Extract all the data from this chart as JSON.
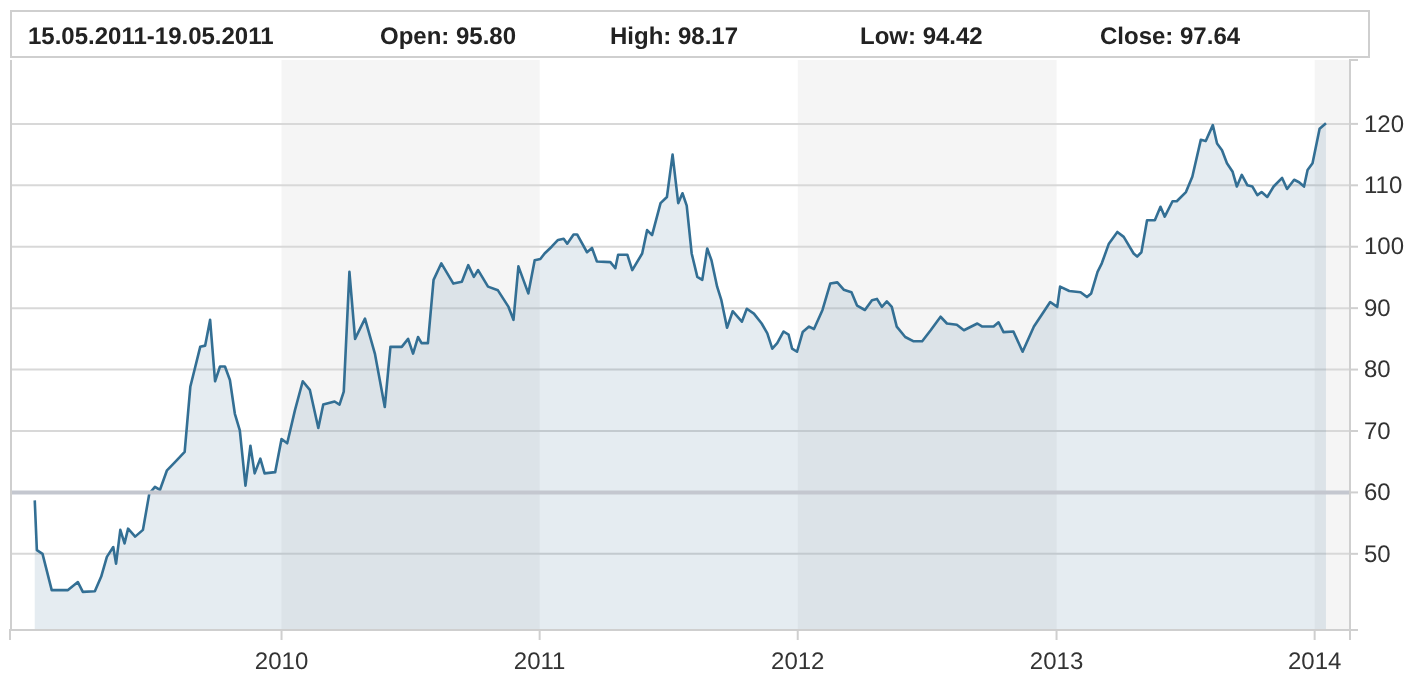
{
  "chart_data": {
    "type": "area",
    "title": "15.05.2011-19.05.2011",
    "annotations": [
      "Open: 95.80",
      "High: 98.17",
      "Low: 94.42",
      "Close: 97.64"
    ],
    "x": [
      "2009-01-17",
      "2009-01-20",
      "2009-01-28",
      "2009-02-10",
      "2009-03-05",
      "2009-03-19",
      "2009-03-26",
      "2009-04-12",
      "2009-04-21",
      "2009-04-29",
      "2009-05-08",
      "2009-05-12",
      "2009-05-18",
      "2009-05-24",
      "2009-05-29",
      "2009-06-08",
      "2009-06-19",
      "2009-06-28",
      "2009-07-06",
      "2009-07-13",
      "2009-07-23",
      "2009-08-03",
      "2009-08-17",
      "2009-08-25",
      "2009-09-08",
      "2009-09-15",
      "2009-09-22",
      "2009-09-29",
      "2009-10-06",
      "2009-10-13",
      "2009-10-20",
      "2009-10-27",
      "2009-11-03",
      "2009-11-11",
      "2009-11-18",
      "2009-11-24",
      "2009-12-02",
      "2009-12-08",
      "2009-12-23",
      "2010-01-01",
      "2010-01-09",
      "2010-01-20",
      "2010-01-31",
      "2010-02-10",
      "2010-02-22",
      "2010-03-01",
      "2010-03-17",
      "2010-03-24",
      "2010-03-30",
      "2010-04-07",
      "2010-04-15",
      "2010-04-29",
      "2010-05-13",
      "2010-05-27",
      "2010-06-04",
      "2010-06-20",
      "2010-06-29",
      "2010-07-06",
      "2010-07-13",
      "2010-07-18",
      "2010-07-27",
      "2010-08-04",
      "2010-08-15",
      "2010-09-01",
      "2010-09-13",
      "2010-09-22",
      "2010-09-30",
      "2010-10-06",
      "2010-10-20",
      "2010-11-03",
      "2010-11-18",
      "2010-11-25",
      "2010-12-02",
      "2010-12-16",
      "2010-12-25",
      "2011-01-02",
      "2011-01-08",
      "2011-01-18",
      "2011-01-27",
      "2011-02-04",
      "2011-02-09",
      "2011-02-18",
      "2011-02-23",
      "2011-03-09",
      "2011-03-16",
      "2011-03-23",
      "2011-04-11",
      "2011-04-18",
      "2011-04-22",
      "2011-05-05",
      "2011-05-12",
      "2011-05-26",
      "2011-06-02",
      "2011-06-09",
      "2011-06-21",
      "2011-06-30",
      "2011-07-08",
      "2011-07-16",
      "2011-07-22",
      "2011-07-28",
      "2011-08-04",
      "2011-08-12",
      "2011-08-19",
      "2011-08-26",
      "2011-09-01",
      "2011-09-09",
      "2011-09-15",
      "2011-09-23",
      "2011-10-01",
      "2011-10-14",
      "2011-10-21",
      "2011-10-31",
      "2011-11-11",
      "2011-11-19",
      "2011-11-26",
      "2011-12-03",
      "2011-12-12",
      "2011-12-19",
      "2011-12-24",
      "2011-12-31",
      "2012-01-08",
      "2012-01-17",
      "2012-01-24",
      "2012-02-05",
      "2012-02-16",
      "2012-02-26",
      "2012-03-06",
      "2012-03-17",
      "2012-03-25",
      "2012-04-05",
      "2012-04-15",
      "2012-04-22",
      "2012-04-29",
      "2012-05-06",
      "2012-05-13",
      "2012-05-20",
      "2012-06-01",
      "2012-06-13",
      "2012-06-25",
      "2012-07-07",
      "2012-07-21",
      "2012-07-30",
      "2012-08-13",
      "2012-08-23",
      "2012-09-11",
      "2012-09-18",
      "2012-10-04",
      "2012-10-11",
      "2012-10-18",
      "2012-11-01",
      "2012-11-14",
      "2012-11-30",
      "2012-12-12",
      "2012-12-23",
      "2013-01-02",
      "2013-01-06",
      "2013-01-19",
      "2013-02-04",
      "2013-02-13",
      "2013-02-19",
      "2013-02-28",
      "2013-03-06",
      "2013-03-16",
      "2013-03-28",
      "2013-04-06",
      "2013-04-20",
      "2013-04-25",
      "2013-05-01",
      "2013-05-09",
      "2013-05-20",
      "2013-05-28",
      "2013-06-03",
      "2013-06-14",
      "2013-06-20",
      "2013-07-03",
      "2013-07-12",
      "2013-07-24",
      "2013-07-31",
      "2013-08-10",
      "2013-08-16",
      "2013-08-23",
      "2013-08-30",
      "2013-09-07",
      "2013-09-13",
      "2013-09-20",
      "2013-09-28",
      "2013-10-05",
      "2013-10-12",
      "2013-10-18",
      "2013-10-26",
      "2013-11-04",
      "2013-11-16",
      "2013-11-23",
      "2013-12-03",
      "2013-12-10",
      "2013-12-17",
      "2013-12-22",
      "2013-12-29",
      "2014-01-08",
      "2014-01-17"
    ],
    "series": [
      {
        "color": "#336f94",
        "values": [
          58.7,
          50.6,
          50.0,
          44.1,
          44.1,
          45.4,
          43.8,
          43.9,
          46.3,
          49.5,
          51.1,
          48.4,
          53.9,
          51.7,
          54.1,
          52.8,
          53.9,
          59.8,
          60.9,
          60.4,
          63.6,
          64.9,
          66.6,
          77.2,
          83.7,
          83.9,
          88.1,
          78.1,
          80.5,
          80.5,
          78.3,
          72.8,
          70.1,
          61.1,
          67.6,
          63.1,
          65.5,
          63.1,
          63.3,
          68.7,
          68.0,
          73.4,
          78.1,
          76.7,
          70.5,
          74.3,
          74.8,
          74.3,
          76.4,
          95.9,
          85.0,
          88.3,
          82.6,
          73.9,
          83.7,
          83.7,
          85.0,
          82.6,
          85.3,
          84.3,
          84.3,
          94.6,
          97.3,
          94.0,
          94.3,
          97.0,
          95.1,
          96.2,
          93.5,
          92.9,
          90.2,
          88.1,
          96.8,
          92.4,
          97.8,
          98.0,
          98.9,
          100.0,
          101.1,
          101.3,
          100.5,
          102.0,
          102.0,
          99.1,
          99.8,
          97.6,
          97.5,
          96.5,
          98.7,
          98.7,
          96.2,
          98.9,
          102.7,
          101.9,
          107.1,
          108.1,
          115.0,
          107.1,
          108.7,
          106.7,
          98.9,
          95.1,
          94.6,
          99.7,
          97.8,
          93.5,
          91.3,
          86.8,
          89.5,
          87.8,
          89.9,
          89.1,
          87.5,
          85.9,
          83.4,
          84.3,
          86.2,
          85.7,
          83.4,
          82.9,
          86.1,
          87.0,
          86.6,
          89.7,
          94.0,
          94.2,
          93.0,
          92.6,
          90.4,
          89.7,
          91.3,
          91.5,
          90.2,
          91.1,
          90.2,
          87.0,
          85.3,
          84.6,
          84.6,
          86.4,
          88.6,
          87.5,
          87.3,
          86.4,
          87.5,
          87.0,
          87.0,
          87.7,
          86.1,
          86.2,
          82.9,
          87.0,
          89.1,
          91.0,
          90.2,
          93.5,
          92.8,
          92.6,
          91.8,
          92.4,
          95.9,
          97.3,
          100.5,
          102.4,
          101.6,
          98.9,
          98.4,
          99.1,
          104.3,
          104.3,
          106.5,
          104.9,
          107.4,
          107.4,
          108.9,
          111.4,
          117.4,
          117.2,
          119.8,
          116.8,
          115.7,
          113.6,
          112.2,
          109.8,
          111.7,
          110.0,
          109.8,
          108.4,
          108.9,
          108.1,
          109.8,
          111.2,
          109.4,
          110.9,
          110.5,
          109.8,
          112.5,
          113.6,
          119.2,
          120.1
        ]
      }
    ],
    "xlim": [
      "2008-12-13",
      "2014-02-20"
    ],
    "ylim": [
      37.6,
      130.4
    ],
    "xticks": [
      {
        "value": "2010-01-01",
        "label": "2010"
      },
      {
        "value": "2011-01-01",
        "label": "2011"
      },
      {
        "value": "2012-01-01",
        "label": "2012"
      },
      {
        "value": "2013-01-01",
        "label": "2013"
      },
      {
        "value": "2014-01-01",
        "label": "2014"
      }
    ],
    "yticks": [
      50,
      60,
      70,
      80,
      90,
      100,
      110,
      120
    ],
    "grid": "y",
    "bands": [
      {
        "axis": "x",
        "from": "2010-01-01",
        "to": "2011-01-01",
        "color": "#f5f5f5"
      },
      {
        "axis": "x",
        "from": "2012-01-01",
        "to": "2013-01-01",
        "color": "#f5f5f5"
      },
      {
        "axis": "x",
        "from": "2014-01-01",
        "to": "2014-02-20",
        "color": "#f5f5f5"
      }
    ],
    "ref_lines": [
      {
        "axis": "y",
        "value": 60,
        "color": "#c4c7cf"
      }
    ]
  }
}
